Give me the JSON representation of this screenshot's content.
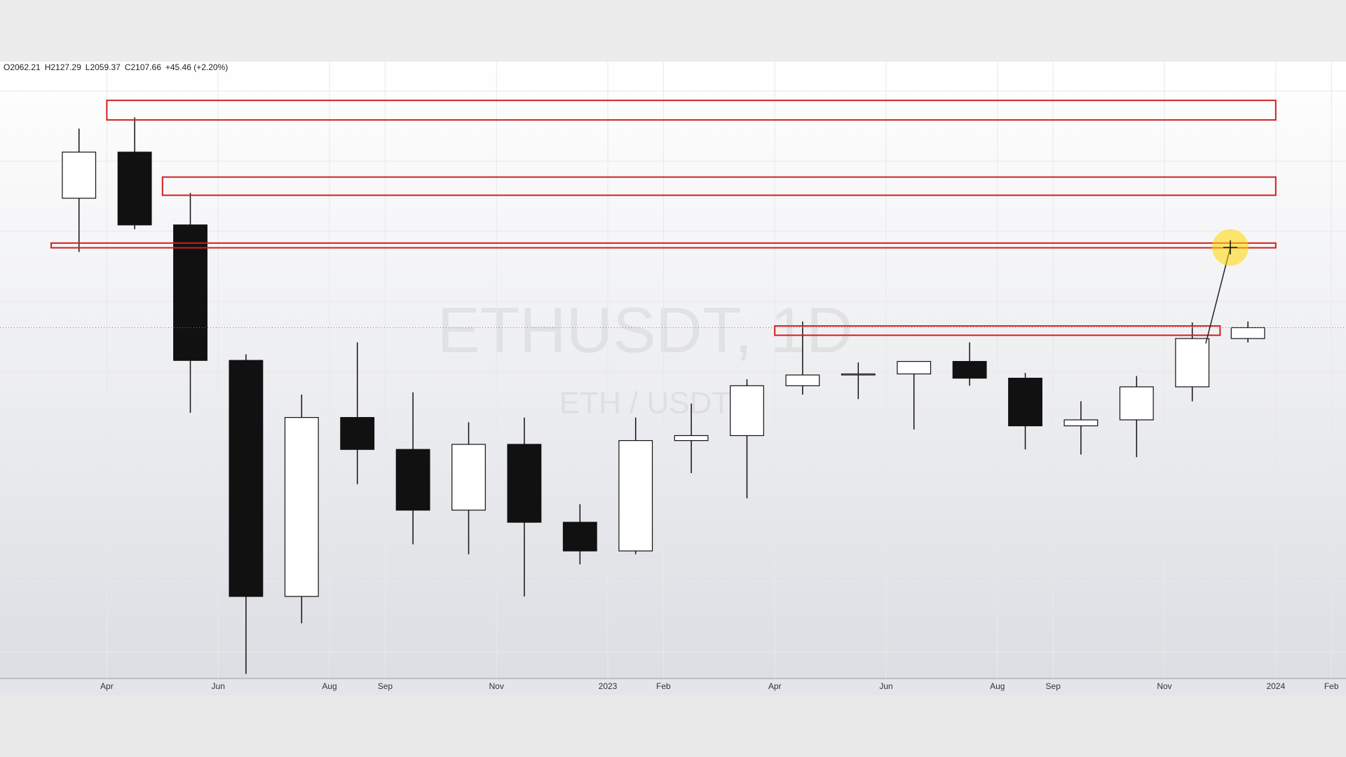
{
  "chart_data": {
    "type": "candlestick",
    "header": [
      "O2062.21",
      "H2127.29",
      "L2059.37",
      "C2107.66",
      "+45.46 (+2.20%)"
    ],
    "watermark": "ETHUSDT, 1D",
    "watermark_sub": "ETH / USDT",
    "log_scale": true,
    "ylim": [
      870,
      4120
    ],
    "x": [
      "2022-03",
      "2022-04",
      "2022-05",
      "2022-06",
      "2022-07",
      "2022-08",
      "2022-09",
      "2022-10",
      "2022-11",
      "2022-12",
      "2023-01",
      "2023-02",
      "2023-03",
      "2023-04",
      "2023-05",
      "2023-06",
      "2023-07",
      "2023-08",
      "2023-09",
      "2023-10",
      "2023-11",
      "2023-12"
    ],
    "open": [
      2920,
      3280,
      2730,
      1940,
      1070,
      1680,
      1550,
      1330,
      1570,
      1290,
      1200,
      1585,
      1605,
      1820,
      1870,
      1875,
      1935,
      1855,
      1645,
      1670,
      1815,
      2050
    ],
    "high": [
      3480,
      3580,
      2960,
      1970,
      1780,
      2030,
      1790,
      1660,
      1680,
      1350,
      1680,
      1740,
      1850,
      2140,
      1930,
      1930,
      2030,
      1880,
      1750,
      1865,
      2135,
      2140
    ],
    "low": [
      2550,
      2700,
      1700,
      880,
      1000,
      1420,
      1220,
      1190,
      1070,
      1160,
      1190,
      1460,
      1370,
      1780,
      1760,
      1630,
      1820,
      1550,
      1530,
      1520,
      1750,
      2030
    ],
    "close": [
      3280,
      2730,
      1940,
      1070,
      1680,
      1550,
      1330,
      1570,
      1290,
      1200,
      1585,
      1605,
      1820,
      1870,
      1875,
      1935,
      1855,
      1645,
      1670,
      1815,
      2050,
      2107
    ],
    "up_color": "#ffffff",
    "down_color": "#111111",
    "xticks": [
      {
        "value": "2022-04",
        "label": "Apr"
      },
      {
        "value": "2022-06",
        "label": "Jun"
      },
      {
        "value": "2022-08",
        "label": "Aug"
      },
      {
        "value": "2022-09",
        "label": "Sep"
      },
      {
        "value": "2022-11",
        "label": "Nov"
      },
      {
        "value": "2023-01",
        "label": "2023"
      },
      {
        "value": "2023-02",
        "label": "Feb"
      },
      {
        "value": "2023-04",
        "label": "Apr"
      },
      {
        "value": "2023-06",
        "label": "Jun"
      },
      {
        "value": "2023-08",
        "label": "Aug"
      },
      {
        "value": "2023-09",
        "label": "Sep"
      },
      {
        "value": "2023-11",
        "label": "Nov"
      },
      {
        "value": "2024-01",
        "label": "2024"
      },
      {
        "value": "2024-02",
        "label": "Feb"
      }
    ],
    "zone_color": "#d01f1f",
    "zones": [
      {
        "top": 3737,
        "bottom": 3557,
        "start": "2022-04",
        "end": "2024-01"
      },
      {
        "top": 3080,
        "bottom": 2942,
        "start": "2022-05",
        "end": "2024-01"
      },
      {
        "top": 2608,
        "bottom": 2577,
        "start": "2022-03",
        "end": "2024-01"
      },
      {
        "top": 2116,
        "bottom": 2067,
        "start": "2023-04",
        "end": "2023-12"
      }
    ],
    "grid": true
  }
}
